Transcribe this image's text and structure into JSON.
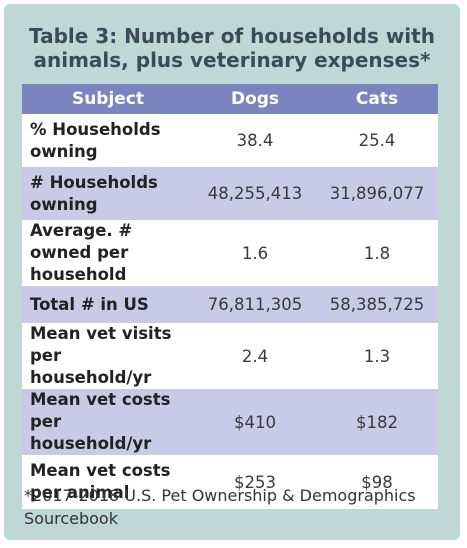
{
  "title": "Table 3: Number of households with animals, plus veterinary expenses*",
  "table": {
    "headers": [
      "Subject",
      "Dogs",
      "Cats"
    ],
    "rows": [
      [
        "% Households owning",
        "38.4",
        "25.4"
      ],
      [
        "# Households owning",
        "48,255,413",
        "31,896,077"
      ],
      [
        "Average. # owned per household",
        "1.6",
        "1.8"
      ],
      [
        "Total # in US",
        "76,811,305",
        "58,385,725"
      ],
      [
        "Mean vet visits per household/yr",
        "2.4",
        "1.3"
      ],
      [
        "Mean vet costs per household/yr",
        "$410",
        "$182"
      ],
      [
        "Mean vet costs per animal",
        "$253",
        "$98"
      ]
    ]
  },
  "footnote": "*2017-2018 U.S. Pet Ownership & Demographics Sourcebook"
}
